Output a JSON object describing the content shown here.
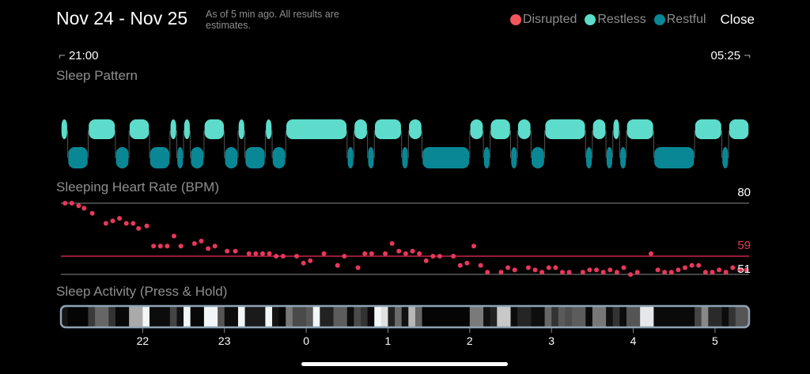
{
  "header": {
    "title": "Nov 24 - Nov 25",
    "subtitle": "As of 5 min ago. All results are estimates.",
    "close_label": "Close"
  },
  "legend": [
    {
      "label": "Disrupted",
      "color": "#f2555c"
    },
    {
      "label": "Restless",
      "color": "#5ddccb"
    },
    {
      "label": "Restful",
      "color": "#0a8794"
    }
  ],
  "range": {
    "start": "21:00",
    "end": "05:25"
  },
  "sleep_pattern": {
    "title": "Sleep Pattern",
    "segments": [
      [
        "21:00",
        "21:05",
        "restless"
      ],
      [
        "21:05",
        "21:20",
        "restful"
      ],
      [
        "21:20",
        "21:40",
        "restless"
      ],
      [
        "21:40",
        "21:50",
        "restful"
      ],
      [
        "21:50",
        "22:05",
        "restless"
      ],
      [
        "22:05",
        "22:20",
        "restful"
      ],
      [
        "22:20",
        "22:25",
        "restless"
      ],
      [
        "22:25",
        "22:30",
        "restful"
      ],
      [
        "22:30",
        "22:35",
        "restless"
      ],
      [
        "22:35",
        "22:45",
        "restful"
      ],
      [
        "22:45",
        "23:00",
        "restless"
      ],
      [
        "23:00",
        "23:10",
        "restful"
      ],
      [
        "23:10",
        "23:15",
        "restless"
      ],
      [
        "23:15",
        "23:30",
        "restful"
      ],
      [
        "23:30",
        "23:35",
        "restless"
      ],
      [
        "23:35",
        "23:45",
        "restful"
      ],
      [
        "23:45",
        "00:30",
        "restless"
      ],
      [
        "00:30",
        "00:35",
        "restful"
      ],
      [
        "00:35",
        "00:45",
        "restless"
      ],
      [
        "00:45",
        "00:50",
        "restful"
      ],
      [
        "00:50",
        "01:10",
        "restless"
      ],
      [
        "01:10",
        "01:15",
        "restful"
      ],
      [
        "01:15",
        "01:25",
        "restless"
      ],
      [
        "01:25",
        "02:00",
        "restful"
      ],
      [
        "02:00",
        "02:10",
        "restless"
      ],
      [
        "02:10",
        "02:15",
        "restful"
      ],
      [
        "02:15",
        "02:30",
        "restless"
      ],
      [
        "02:30",
        "02:35",
        "restful"
      ],
      [
        "02:35",
        "02:45",
        "restless"
      ],
      [
        "02:45",
        "02:55",
        "restful"
      ],
      [
        "02:55",
        "03:25",
        "restless"
      ],
      [
        "03:25",
        "03:30",
        "restful"
      ],
      [
        "03:30",
        "03:40",
        "restless"
      ],
      [
        "03:40",
        "03:45",
        "restful"
      ],
      [
        "03:45",
        "03:50",
        "restless"
      ],
      [
        "03:50",
        "03:55",
        "restful"
      ],
      [
        "03:55",
        "04:15",
        "restless"
      ],
      [
        "04:15",
        "04:45",
        "restful"
      ],
      [
        "04:45",
        "05:05",
        "restless"
      ],
      [
        "05:05",
        "05:10",
        "restful"
      ],
      [
        "05:10",
        "05:25",
        "restless"
      ]
    ]
  },
  "heart_rate": {
    "title": "Sleeping Heart Rate (BPM)",
    "max_label": "80",
    "avg_label": "59",
    "min_label": "51",
    "avg_color": "#e8385a",
    "points": [
      [
        "21:03",
        80
      ],
      [
        "21:08",
        80
      ],
      [
        "21:13",
        79
      ],
      [
        "21:17",
        78
      ],
      [
        "21:23",
        76
      ],
      [
        "21:33",
        72
      ],
      [
        "21:38",
        73
      ],
      [
        "21:43",
        74
      ],
      [
        "21:48",
        72
      ],
      [
        "21:53",
        72
      ],
      [
        "21:57",
        70
      ],
      [
        "22:03",
        71
      ],
      [
        "22:08",
        63
      ],
      [
        "22:13",
        63
      ],
      [
        "22:18",
        63
      ],
      [
        "22:23",
        67
      ],
      [
        "22:28",
        63
      ],
      [
        "22:38",
        64
      ],
      [
        "22:43",
        65
      ],
      [
        "22:48",
        62
      ],
      [
        "22:53",
        63
      ],
      [
        "23:02",
        61
      ],
      [
        "23:08",
        61
      ],
      [
        "23:18",
        60
      ],
      [
        "23:23",
        60
      ],
      [
        "23:28",
        60
      ],
      [
        "23:33",
        60
      ],
      [
        "23:38",
        59
      ],
      [
        "23:43",
        59
      ],
      [
        "23:53",
        59
      ],
      [
        "23:58",
        56
      ],
      [
        "00:03",
        57
      ],
      [
        "00:13",
        60
      ],
      [
        "00:23",
        55
      ],
      [
        "00:28",
        59
      ],
      [
        "00:38",
        54
      ],
      [
        "00:43",
        60
      ],
      [
        "00:48",
        60
      ],
      [
        "00:58",
        60
      ],
      [
        "01:03",
        64
      ],
      [
        "01:08",
        61
      ],
      [
        "01:13",
        60
      ],
      [
        "01:18",
        61
      ],
      [
        "01:23",
        60
      ],
      [
        "01:28",
        57
      ],
      [
        "01:33",
        59
      ],
      [
        "01:38",
        59
      ],
      [
        "01:48",
        59
      ],
      [
        "01:53",
        55
      ],
      [
        "01:58",
        56
      ],
      [
        "02:03",
        63
      ],
      [
        "02:08",
        55
      ],
      [
        "02:13",
        52
      ],
      [
        "02:23",
        52
      ],
      [
        "02:28",
        54
      ],
      [
        "02:33",
        53
      ],
      [
        "02:43",
        54
      ],
      [
        "02:48",
        53
      ],
      [
        "02:53",
        52
      ],
      [
        "02:58",
        54
      ],
      [
        "03:03",
        54
      ],
      [
        "03:08",
        52
      ],
      [
        "03:13",
        52
      ],
      [
        "03:23",
        52
      ],
      [
        "03:28",
        53
      ],
      [
        "03:33",
        53
      ],
      [
        "03:38",
        52
      ],
      [
        "03:43",
        53
      ],
      [
        "03:48",
        52
      ],
      [
        "03:53",
        54
      ],
      [
        "03:58",
        51
      ],
      [
        "04:03",
        52
      ],
      [
        "04:13",
        60
      ],
      [
        "04:18",
        53
      ],
      [
        "04:23",
        52
      ],
      [
        "04:28",
        52
      ],
      [
        "04:33",
        53
      ],
      [
        "04:38",
        54
      ],
      [
        "04:43",
        55
      ],
      [
        "04:48",
        55
      ],
      [
        "04:53",
        52
      ],
      [
        "04:58",
        52
      ],
      [
        "05:03",
        53
      ],
      [
        "05:08",
        52
      ],
      [
        "05:13",
        54
      ],
      [
        "05:18",
        53
      ],
      [
        "05:23",
        53
      ]
    ]
  },
  "activity": {
    "title": "Sleep Activity (Press & Hold)",
    "axis_labels": [
      "22",
      "23",
      "0",
      "1",
      "2",
      "3",
      "4",
      "5"
    ],
    "bands": [
      [
        "21:00",
        "#151515"
      ],
      [
        "21:05",
        "#050505"
      ],
      [
        "21:20",
        "#3a3a3a"
      ],
      [
        "21:25",
        "#666666"
      ],
      [
        "21:35",
        "#333333"
      ],
      [
        "21:40",
        "#080808"
      ],
      [
        "21:50",
        "#aaaaaa"
      ],
      [
        "22:00",
        "#f2f6f7"
      ],
      [
        "22:05",
        "#0c0c0c"
      ],
      [
        "22:20",
        "#444444"
      ],
      [
        "22:25",
        "#111111"
      ],
      [
        "22:30",
        "#f2f6f7"
      ],
      [
        "22:35",
        "#080808"
      ],
      [
        "22:45",
        "#f2f6f7"
      ],
      [
        "22:55",
        "#555555"
      ],
      [
        "23:00",
        "#0c0c0c"
      ],
      [
        "23:10",
        "#f2f6f7"
      ],
      [
        "23:15",
        "#1a1a1a"
      ],
      [
        "23:30",
        "#f2f6f7"
      ],
      [
        "23:35",
        "#141414"
      ],
      [
        "23:40",
        "#050505"
      ],
      [
        "23:45",
        "#777777"
      ],
      [
        "23:50",
        "#4a4a4a"
      ],
      [
        "00:00",
        "#5a5a5a"
      ],
      [
        "00:05",
        "#f2f6f7"
      ],
      [
        "00:10",
        "#222222"
      ],
      [
        "00:20",
        "#5c5c5c"
      ],
      [
        "00:30",
        "#0c0c0c"
      ],
      [
        "00:35",
        "#4a4a4a"
      ],
      [
        "00:40",
        "#333333"
      ],
      [
        "00:45",
        "#080808"
      ],
      [
        "00:50",
        "#f2f6f7"
      ],
      [
        "00:55",
        "#e0e0e0"
      ],
      [
        "01:00",
        "#222222"
      ],
      [
        "01:05",
        "#6a6a6a"
      ],
      [
        "01:10",
        "#111111"
      ],
      [
        "01:15",
        "#b8b8b8"
      ],
      [
        "01:20",
        "#666666"
      ],
      [
        "01:25",
        "#050505"
      ],
      [
        "02:00",
        "#7a7a7a"
      ],
      [
        "02:10",
        "#111111"
      ],
      [
        "02:15",
        "#222222"
      ],
      [
        "02:20",
        "#c8c8c8"
      ],
      [
        "02:30",
        "#0c0c0c"
      ],
      [
        "02:35",
        "#252525"
      ],
      [
        "02:45",
        "#0e0e0e"
      ],
      [
        "02:55",
        "#666666"
      ],
      [
        "03:00",
        "#333333"
      ],
      [
        "03:05",
        "#5a5a5a"
      ],
      [
        "03:10",
        "#4e4e4e"
      ],
      [
        "03:15",
        "#5c5c5c"
      ],
      [
        "03:25",
        "#0a0a0a"
      ],
      [
        "03:30",
        "#777777"
      ],
      [
        "03:40",
        "#111111"
      ],
      [
        "03:45",
        "#333333"
      ],
      [
        "03:50",
        "#0c0c0c"
      ],
      [
        "03:55",
        "#555555"
      ],
      [
        "04:05",
        "#e4e8ea"
      ],
      [
        "04:15",
        "#0a0a0a"
      ],
      [
        "04:45",
        "#444444"
      ],
      [
        "04:50",
        "#888888"
      ],
      [
        "04:55",
        "#2a2a2a"
      ],
      [
        "05:05",
        "#0c0c0c"
      ],
      [
        "05:10",
        "#333333"
      ],
      [
        "05:15",
        "#555555"
      ]
    ]
  }
}
